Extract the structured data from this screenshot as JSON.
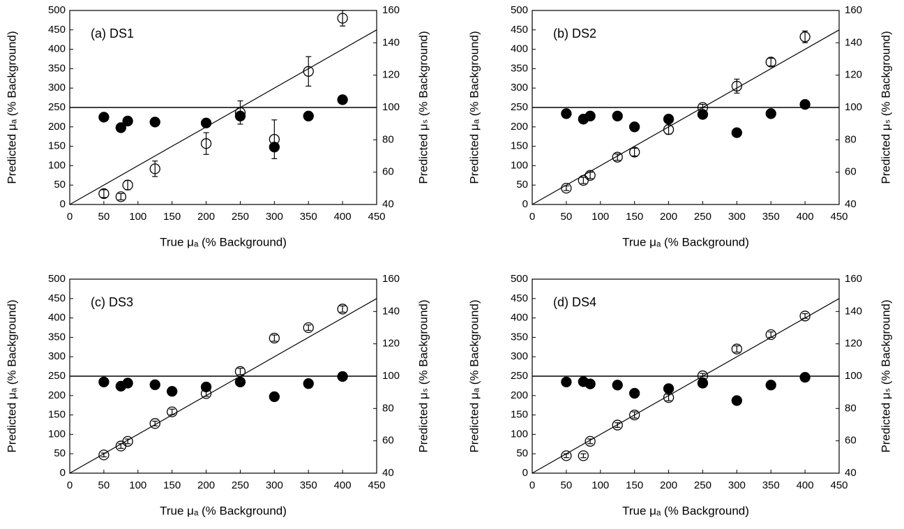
{
  "chart_data": [
    {
      "type": "scatter",
      "annotation": "(a) DS1",
      "xlabel": "True μₐ (% Background)",
      "ylabel": "Predicted μₐ (% Background)",
      "y2label": "Predicted μₛ (% Background)",
      "x": [
        50,
        75,
        85,
        125,
        200,
        250,
        300,
        350,
        400
      ],
      "series": [
        {
          "color": "#000000",
          "filled": false,
          "values": [
            28,
            20,
            50,
            92,
            157,
            237,
            168,
            343,
            480
          ],
          "errors": [
            10,
            8,
            12,
            20,
            28,
            30,
            50,
            38,
            20
          ]
        },
        {
          "color": "#000000",
          "filled": true,
          "axis": "y2",
          "values": [
            94,
            87.5,
            91.6,
            91,
            90.4,
            94.7,
            75.5,
            94.7,
            104.8
          ]
        }
      ],
      "identity_line": true,
      "y2_reference": 100,
      "xlim": [
        0,
        450
      ],
      "xticks": [
        0,
        50,
        100,
        150,
        200,
        250,
        300,
        350,
        400,
        450
      ],
      "ylim": [
        0,
        500
      ],
      "yticks": [
        0,
        50,
        100,
        150,
        200,
        250,
        300,
        350,
        400,
        450,
        500
      ],
      "y2lim": [
        40,
        160
      ],
      "y2ticks": [
        40,
        60,
        80,
        100,
        120,
        140,
        160
      ]
    },
    {
      "type": "scatter",
      "annotation": "(b) DS2",
      "xlabel": "True μₐ (% Background)",
      "ylabel": "Predicted μₐ (% Background)",
      "y2label": "Predicted μₛ (% Background)",
      "x": [
        50,
        75,
        85,
        125,
        150,
        200,
        250,
        300,
        350,
        400
      ],
      "series": [
        {
          "color": "#000000",
          "filled": false,
          "values": [
            42,
            62,
            75,
            122,
            135,
            193,
            250,
            305,
            367,
            432
          ],
          "errors": [
            6,
            8,
            8,
            8,
            10,
            12,
            8,
            18,
            10,
            15
          ]
        },
        {
          "color": "#000000",
          "filled": true,
          "axis": "y2",
          "values": [
            96.2,
            92.8,
            94.7,
            94.7,
            88,
            92.8,
            95.7,
            84.4,
            96.2,
            101.9
          ]
        }
      ],
      "identity_line": true,
      "y2_reference": 100,
      "xlim": [
        0,
        450
      ],
      "xticks": [
        0,
        50,
        100,
        150,
        200,
        250,
        300,
        350,
        400,
        450
      ],
      "ylim": [
        0,
        500
      ],
      "yticks": [
        0,
        50,
        100,
        150,
        200,
        250,
        300,
        350,
        400,
        450,
        500
      ],
      "y2lim": [
        40,
        160
      ],
      "y2ticks": [
        40,
        60,
        80,
        100,
        120,
        140,
        160
      ]
    },
    {
      "type": "scatter",
      "annotation": "(c) DS3",
      "xlabel": "True μₐ (% Background)",
      "ylabel": "Predicted μₐ (% Background)",
      "y2label": "Predicted μₛ (% Background)",
      "x": [
        50,
        75,
        85,
        125,
        150,
        200,
        250,
        300,
        350,
        400
      ],
      "series": [
        {
          "color": "#000000",
          "filled": false,
          "values": [
            47,
            70,
            82,
            128,
            158,
            205,
            262,
            348,
            375,
            423
          ],
          "errors": [
            5,
            6,
            6,
            6,
            7,
            7,
            8,
            8,
            7,
            8
          ]
        },
        {
          "color": "#000000",
          "filled": true,
          "axis": "y2",
          "values": [
            96.4,
            93.8,
            95.7,
            94.7,
            90.6,
            93.3,
            96.4,
            87.3,
            95.4,
            99.8
          ]
        }
      ],
      "identity_line": true,
      "y2_reference": 100,
      "xlim": [
        0,
        450
      ],
      "xticks": [
        0,
        50,
        100,
        150,
        200,
        250,
        300,
        350,
        400,
        450
      ],
      "ylim": [
        0,
        500
      ],
      "yticks": [
        0,
        50,
        100,
        150,
        200,
        250,
        300,
        350,
        400,
        450,
        500
      ],
      "y2lim": [
        40,
        160
      ],
      "y2ticks": [
        40,
        60,
        80,
        100,
        120,
        140,
        160
      ]
    },
    {
      "type": "scatter",
      "annotation": "(d) DS4",
      "xlabel": "True μₐ (% Background)",
      "ylabel": "Predicted μₐ (% Background)",
      "y2label": "Predicted μₛ (% Background)",
      "x": [
        50,
        75,
        85,
        125,
        150,
        200,
        250,
        300,
        350,
        400
      ],
      "series": [
        {
          "color": "#000000",
          "filled": false,
          "values": [
            45,
            45,
            82,
            124,
            150,
            195,
            251,
            320,
            357,
            405
          ],
          "errors": [
            5,
            5,
            6,
            6,
            8,
            8,
            6,
            8,
            7,
            6
          ]
        },
        {
          "color": "#000000",
          "filled": true,
          "axis": "y2",
          "values": [
            96.4,
            96.6,
            95.2,
            94.5,
            89.4,
            92.3,
            95.7,
            84.9,
            94.5,
            99.3
          ]
        }
      ],
      "identity_line": true,
      "y2_reference": 100,
      "xlim": [
        0,
        450
      ],
      "xticks": [
        0,
        50,
        100,
        150,
        200,
        250,
        300,
        350,
        400,
        450
      ],
      "ylim": [
        0,
        500
      ],
      "yticks": [
        0,
        50,
        100,
        150,
        200,
        250,
        300,
        350,
        400,
        450,
        500
      ],
      "y2lim": [
        40,
        160
      ],
      "y2ticks": [
        40,
        60,
        80,
        100,
        120,
        140,
        160
      ]
    }
  ]
}
